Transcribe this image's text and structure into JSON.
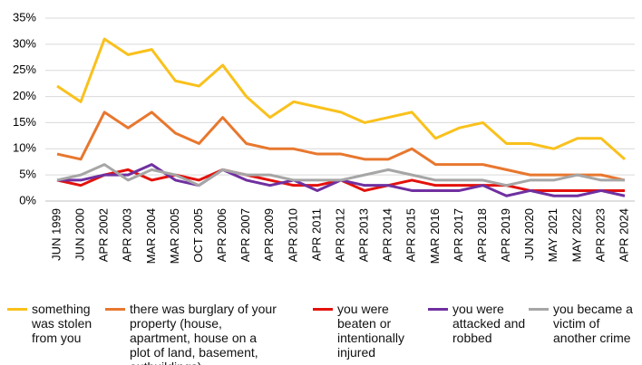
{
  "chart_data": {
    "type": "line",
    "categories": [
      "JUN 1999",
      "JUN 2000",
      "APR 2002",
      "APR 2003",
      "MAR 2004",
      "MAR 2005",
      "OCT 2005",
      "APR 2006",
      "APR 2007",
      "APR 2009",
      "APR 2010",
      "APR 2011",
      "APR 2012",
      "APR 2013",
      "APR 2014",
      "APR 2015",
      "MAR 2016",
      "APR 2017",
      "APR 2018",
      "APR 2019",
      "JUN 2020",
      "MAY 2021",
      "MAY 2022",
      "APR 2023",
      "APR 2024"
    ],
    "series": [
      {
        "name": "something was stolen from you",
        "color": "#f9c11c",
        "values": [
          22,
          19,
          31,
          28,
          29,
          23,
          22,
          26,
          20,
          16,
          19,
          18,
          17,
          15,
          16,
          17,
          12,
          14,
          15,
          11,
          11,
          10,
          12,
          12,
          8
        ]
      },
      {
        "name": "there was burglary of your property (house, apartment, house on a plot of land, basement, outbuildings)",
        "color": "#e8772e",
        "values": [
          9,
          8,
          17,
          14,
          17,
          13,
          11,
          16,
          11,
          10,
          10,
          9,
          9,
          8,
          8,
          10,
          7,
          7,
          7,
          6,
          5,
          5,
          5,
          5,
          4
        ]
      },
      {
        "name": "you were beaten or intentionally injured",
        "color": "#e3120b",
        "values": [
          4,
          3,
          5,
          6,
          4,
          5,
          4,
          6,
          5,
          4,
          3,
          3,
          4,
          2,
          3,
          4,
          3,
          3,
          3,
          3,
          2,
          2,
          2,
          2,
          2
        ]
      },
      {
        "name": "you were attacked and robbed",
        "color": "#7030a0",
        "values": [
          4,
          4,
          5,
          5,
          7,
          4,
          3,
          6,
          4,
          3,
          4,
          2,
          4,
          3,
          3,
          2,
          2,
          2,
          3,
          1,
          2,
          1,
          1,
          2,
          1
        ]
      },
      {
        "name": "you became a victim of another crime",
        "color": "#a6a6a6",
        "values": [
          4,
          5,
          7,
          4,
          6,
          5,
          3,
          6,
          5,
          5,
          4,
          4,
          4,
          5,
          6,
          5,
          4,
          4,
          4,
          3,
          4,
          4,
          5,
          4,
          4
        ]
      }
    ],
    "ylim": [
      0,
      35
    ],
    "yticks": [
      {
        "value": 0,
        "label": "0%"
      },
      {
        "value": 5,
        "label": "5%"
      },
      {
        "value": 10,
        "label": "10%"
      },
      {
        "value": 15,
        "label": "15%"
      },
      {
        "value": 20,
        "label": "20%"
      },
      {
        "value": 25,
        "label": "25%"
      },
      {
        "value": 30,
        "label": "30%"
      },
      {
        "value": 35,
        "label": "35%"
      }
    ],
    "grid": true,
    "legend": "bottom"
  }
}
